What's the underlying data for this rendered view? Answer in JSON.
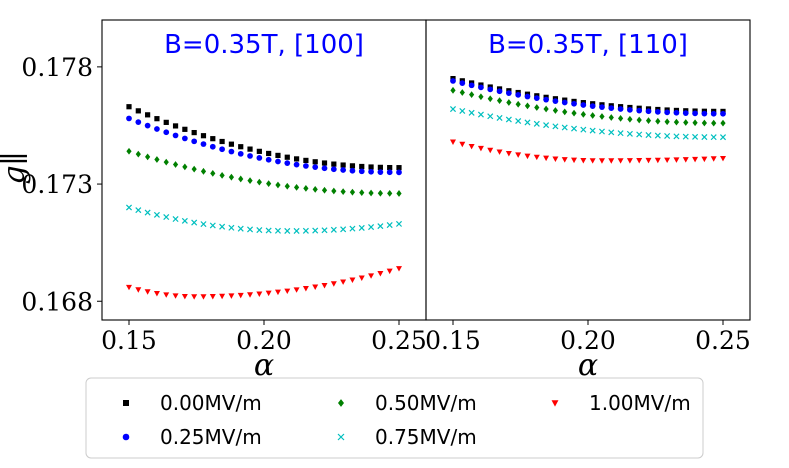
{
  "chart_data": [
    {
      "type": "scatter",
      "title": "B=0.35T, [100]",
      "xlabel": "α",
      "ylabel": "g∥",
      "xlim": [
        0.14,
        0.26
      ],
      "ylim": [
        0.1672,
        0.18
      ],
      "xticks": [
        0.15,
        0.2,
        0.25
      ],
      "xtick_labels": [
        "0.15",
        "0.20",
        "0.25"
      ],
      "yticks": [
        0.168,
        0.173,
        0.178
      ],
      "ytick_labels": [
        "0.168",
        "0.173",
        "0.178"
      ],
      "grid": false,
      "series": [
        {
          "name": "0.00MV/m",
          "color": "#000000",
          "marker": "square",
          "x_start": 0.15,
          "x_end": 0.25,
          "count": 30,
          "v_start": 0.1763,
          "v_min": 0.1737,
          "v_end": 0.1737,
          "min_at": 0.25
        },
        {
          "name": "0.25MV/m",
          "color": "#0000ff",
          "marker": "circle",
          "x_start": 0.15,
          "x_end": 0.25,
          "count": 30,
          "v_start": 0.1758,
          "v_min": 0.1735,
          "v_end": 0.1735,
          "min_at": 0.25
        },
        {
          "name": "0.50MV/m",
          "color": "#008000",
          "marker": "diamond",
          "x_start": 0.15,
          "x_end": 0.25,
          "count": 30,
          "v_start": 0.1744,
          "v_min": 0.1726,
          "v_end": 0.1726,
          "min_at": 0.25
        },
        {
          "name": "0.75MV/m",
          "color": "#00bfbf",
          "marker": "x",
          "x_start": 0.15,
          "x_end": 0.25,
          "count": 30,
          "v_start": 0.172,
          "v_min": 0.171,
          "v_end": 0.1713,
          "min_at": 0.21
        },
        {
          "name": "1.00MV/m",
          "color": "#ff0000",
          "marker": "triangle-down",
          "x_start": 0.15,
          "x_end": 0.25,
          "count": 30,
          "v_start": 0.1686,
          "v_min": 0.1682,
          "v_end": 0.1694,
          "min_at": 0.175
        }
      ]
    },
    {
      "type": "scatter",
      "title": "B=0.35T, [110]",
      "xlabel": "α",
      "ylabel": "",
      "xlim": [
        0.14,
        0.26
      ],
      "ylim": [
        0.1672,
        0.18
      ],
      "xticks": [
        0.15,
        0.2,
        0.25
      ],
      "xtick_labels": [
        "0.15",
        "0.20",
        "0.25"
      ],
      "yticks": [],
      "ytick_labels": [],
      "grid": false,
      "series": [
        {
          "name": "0.00MV/m",
          "color": "#000000",
          "marker": "square",
          "x_start": 0.15,
          "x_end": 0.25,
          "count": 30,
          "v_start": 0.1775,
          "v_min": 0.1761,
          "v_end": 0.1761,
          "min_at": 0.25
        },
        {
          "name": "0.25MV/m",
          "color": "#0000ff",
          "marker": "circle",
          "x_start": 0.15,
          "x_end": 0.25,
          "count": 30,
          "v_start": 0.1774,
          "v_min": 0.176,
          "v_end": 0.176,
          "min_at": 0.25
        },
        {
          "name": "0.50MV/m",
          "color": "#008000",
          "marker": "diamond",
          "x_start": 0.15,
          "x_end": 0.25,
          "count": 30,
          "v_start": 0.177,
          "v_min": 0.1756,
          "v_end": 0.1756,
          "min_at": 0.25
        },
        {
          "name": "0.75MV/m",
          "color": "#00bfbf",
          "marker": "x",
          "x_start": 0.15,
          "x_end": 0.25,
          "count": 30,
          "v_start": 0.1762,
          "v_min": 0.175,
          "v_end": 0.175,
          "min_at": 0.25
        },
        {
          "name": "1.00MV/m",
          "color": "#ff0000",
          "marker": "triangle-down",
          "x_start": 0.15,
          "x_end": 0.25,
          "count": 30,
          "v_start": 0.1748,
          "v_min": 0.174,
          "v_end": 0.1741,
          "min_at": 0.205
        }
      ]
    }
  ],
  "legend": {
    "placement": "bottom-center",
    "entries": [
      {
        "label": "0.00MV/m",
        "color": "#000000",
        "marker": "square"
      },
      {
        "label": "0.50MV/m",
        "color": "#008000",
        "marker": "diamond"
      },
      {
        "label": "1.00MV/m",
        "color": "#ff0000",
        "marker": "triangle-down"
      },
      {
        "label": "0.25MV/m",
        "color": "#0000ff",
        "marker": "circle"
      },
      {
        "label": "0.75MV/m",
        "color": "#00bfbf",
        "marker": "x"
      }
    ]
  }
}
